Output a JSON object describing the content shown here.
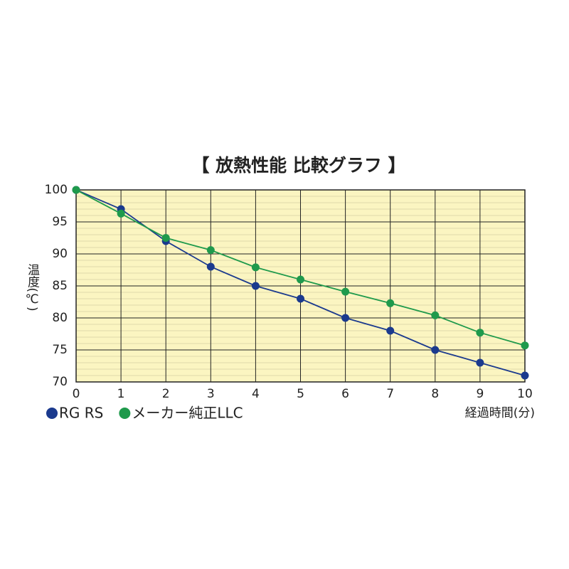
{
  "chart_data": {
    "type": "line",
    "title": "【 放熱性能 比較グラフ 】",
    "x_label": "経過時間(分)",
    "y_label": "温度(℃)",
    "x": [
      0,
      1,
      2,
      3,
      4,
      5,
      6,
      7,
      8,
      9,
      10
    ],
    "series": [
      {
        "name": "RG RS",
        "color": "#1b3a8e",
        "values": [
          100,
          97,
          92,
          88,
          85,
          83,
          80,
          78,
          75,
          73,
          71
        ]
      },
      {
        "name": "メーカー純正LLC",
        "color": "#1f9a4c",
        "values": [
          100,
          96.3,
          92.5,
          90.6,
          87.9,
          86,
          84.1,
          82.3,
          80.4,
          77.7,
          75.7
        ]
      }
    ],
    "xlim": [
      0,
      10
    ],
    "xticks": [
      0,
      1,
      2,
      3,
      4,
      5,
      6,
      7,
      8,
      9,
      10
    ],
    "ylim": [
      70,
      100
    ],
    "yticks": [
      70,
      75,
      80,
      85,
      90,
      95,
      100
    ],
    "grid": true,
    "minor_grid_step": 1,
    "background": "#fbf5c1"
  }
}
